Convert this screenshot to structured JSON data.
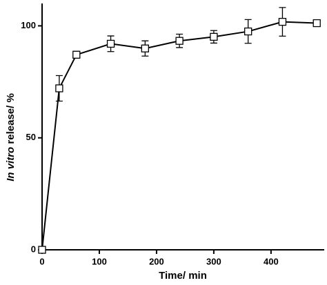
{
  "chart_data": {
    "type": "line",
    "x_label": "Time/ min",
    "y_label": [
      "In vitro",
      "release/ %"
    ],
    "x": [
      0,
      30,
      60,
      120,
      180,
      240,
      300,
      360,
      420,
      480
    ],
    "series": [
      {
        "color": "#000000",
        "values": [
          0,
          72.1,
          87.1,
          92.0,
          89.9,
          93.3,
          95.1,
          97.5,
          101.8,
          101.2
        ],
        "errors": [
          0,
          5.7,
          1.5,
          3.5,
          3.4,
          3.0,
          2.8,
          5.3,
          6.4,
          1.0
        ]
      }
    ],
    "xlim": [
      0,
      493
    ],
    "xticks": [
      0,
      100,
      200,
      300,
      400
    ],
    "ylim": [
      0,
      110
    ],
    "yticks": [
      0,
      50,
      100
    ],
    "grid": false
  }
}
